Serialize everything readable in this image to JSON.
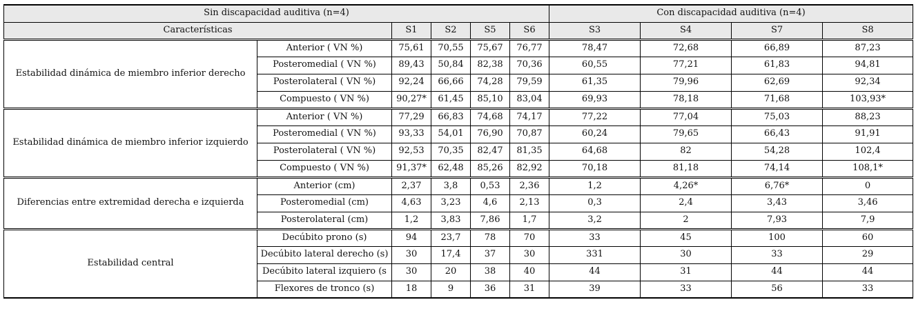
{
  "table": {
    "group_headers": [
      {
        "label": "Sin discapacidad auditiva (n=4)"
      },
      {
        "label": "Con discapacidad auditiva (n=4)"
      }
    ],
    "characteristics_header": "Características",
    "subject_columns": [
      "S1",
      "S2",
      "S5",
      "S6",
      "S3",
      "S4",
      "S7",
      "S8"
    ],
    "split_index": 4,
    "sections": [
      {
        "category": "Estabilidad dinámica de miembro inferior derecho",
        "rows": [
          {
            "measure": "Anterior ( VN %)",
            "values": [
              "75,61",
              "70,55",
              "75,67",
              "76,77",
              "78,47",
              "72,68",
              "66,89",
              "87,23"
            ]
          },
          {
            "measure": "Posteromedial ( VN %)",
            "values": [
              "89,43",
              "50,84",
              "82,38",
              "70,36",
              "60,55",
              "77,21",
              "61,83",
              "94,81"
            ]
          },
          {
            "measure": "Posterolateral ( VN %)",
            "values": [
              "92,24",
              "66,66",
              "74,28",
              "79,59",
              "61,35",
              "79,96",
              "62,69",
              "92,34"
            ]
          },
          {
            "measure": "Compuesto ( VN %)",
            "values": [
              "90,27*",
              "61,45",
              "85,10",
              "83,04",
              "69,93",
              "78,18",
              "71,68",
              "103,93*"
            ]
          }
        ]
      },
      {
        "category": "Estabilidad dinámica de miembro inferior izquierdo",
        "rows": [
          {
            "measure": "Anterior ( VN %)",
            "values": [
              "77,29",
              "66,83",
              "74,68",
              "74,17",
              "77,22",
              "77,04",
              "75,03",
              "88,23"
            ]
          },
          {
            "measure": "Posteromedial ( VN %)",
            "values": [
              "93,33",
              "54,01",
              "76,90",
              "70,87",
              "60,24",
              "79,65",
              "66,43",
              "91,91"
            ]
          },
          {
            "measure": "Posterolateral ( VN %)",
            "values": [
              "92,53",
              "70,35",
              "82,47",
              "81,35",
              "64,68",
              "82",
              "54,28",
              "102,4"
            ]
          },
          {
            "measure": "Compuesto ( VN %)",
            "values": [
              "91,37*",
              "62,48",
              "85,26",
              "82,92",
              "70,18",
              "81,18",
              "74,14",
              "108,1*"
            ]
          }
        ]
      },
      {
        "category": "Diferencias entre extremidad derecha e izquierda",
        "rows": [
          {
            "measure": "Anterior (cm)",
            "values": [
              "2,37",
              "3,8",
              "0,53",
              "2,36",
              "1,2",
              "4,26*",
              "6,76*",
              "0"
            ]
          },
          {
            "measure": "Posteromedial (cm)",
            "values": [
              "4,63",
              "3,23",
              "4,6",
              "2,13",
              "0,3",
              "2,4",
              "3,43",
              "3,46"
            ]
          },
          {
            "measure": "Posterolateral (cm)",
            "values": [
              "1,2",
              "3,83",
              "7,86",
              "1,7",
              "3,2",
              "2",
              "7,93",
              "7,9"
            ]
          }
        ]
      },
      {
        "category": "Estabilidad central",
        "rows": [
          {
            "measure": "Decúbito prono (s)",
            "values": [
              "94",
              "23,7",
              "78",
              "70",
              "33",
              "45",
              "100",
              "60"
            ]
          },
          {
            "measure": "Decúbito lateral derecho (s)",
            "values": [
              "30",
              "17,4",
              "37",
              "30",
              "331",
              "30",
              "33",
              "29"
            ]
          },
          {
            "measure": "Decúbito lateral izquiero (s",
            "values": [
              "30",
              "20",
              "38",
              "40",
              "44",
              "31",
              "44",
              "44"
            ]
          },
          {
            "measure": "Flexores de tronco (s)",
            "values": [
              "18",
              "9",
              "36",
              "31",
              "39",
              "33",
              "56",
              "33"
            ]
          }
        ]
      }
    ]
  },
  "colors": {
    "header_bg": "#e9e9e9",
    "border": "#000000",
    "text": "#111111",
    "background": "#ffffff"
  }
}
